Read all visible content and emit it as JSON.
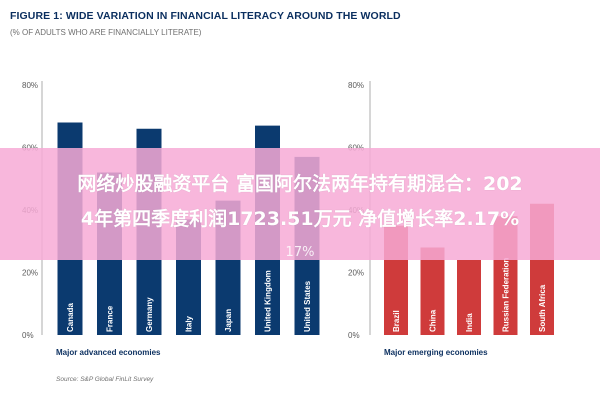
{
  "header": {
    "title": "FIGURE 1: WIDE VARIATION IN FINANCIAL LITERACY AROUND THE WORLD",
    "subtitle": "(% OF ADULTS WHO ARE FINANCIALLY LITERATE)"
  },
  "overlay": {
    "line1": "网络炒股融资平台 富国阿尔法两年持有期混合：202",
    "line2": "4年第四季度利润1723.51万元 净值增长率2.17%",
    "ghost": "17%"
  },
  "chart_data": [
    {
      "type": "bar",
      "title": "",
      "categories": [
        "Canada",
        "France",
        "Germany",
        "Italy",
        "Japan",
        "United Kingdom",
        "United States"
      ],
      "values": [
        68,
        52,
        66,
        37,
        43,
        67,
        57
      ],
      "xlabel": "Major advanced economies",
      "ylabel": "",
      "yticks": [
        "0%",
        "20%",
        "40%",
        "60%",
        "80%"
      ],
      "ylim": [
        0,
        80
      ],
      "grid": false,
      "legend": "none",
      "color": "#0b3a6f",
      "source": "Source: S&P Global FinLit Survey"
    },
    {
      "type": "bar",
      "title": "",
      "categories": [
        "Brazil",
        "China",
        "India",
        "Russian Federation",
        "South Africa"
      ],
      "values": [
        35,
        28,
        24,
        38,
        42
      ],
      "xlabel": "Major emerging economies",
      "ylabel": "",
      "yticks": [
        "0%",
        "20%",
        "40%",
        "60%",
        "80%"
      ],
      "ylim": [
        0,
        80
      ],
      "grid": false,
      "legend": "none",
      "color": "#cf3b3b"
    }
  ]
}
